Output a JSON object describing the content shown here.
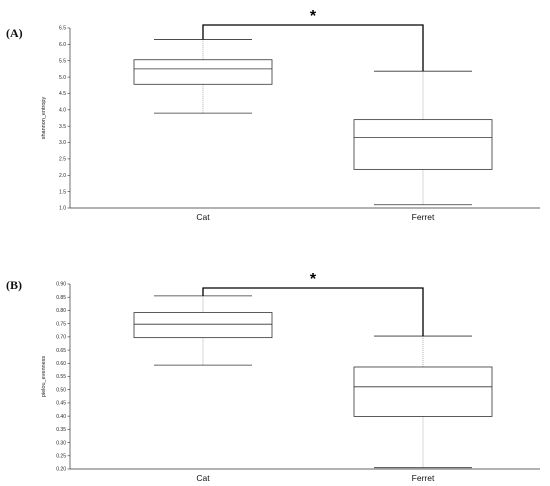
{
  "panels": [
    {
      "label": "(A)"
    },
    {
      "label": "(B)"
    }
  ],
  "chart_data": [
    {
      "type": "box",
      "categories": [
        "Cat",
        "Ferret"
      ],
      "ylabel": "shannon_entropy",
      "ylim": [
        1.0,
        6.5
      ],
      "yticks": [
        "1.0",
        "1.5",
        "2.0",
        "2.5",
        "3.0",
        "3.5",
        "4.0",
        "4.5",
        "5.0",
        "5.5",
        "6.0",
        "6.5"
      ],
      "boxes": [
        {
          "category": "Cat",
          "min": 3.9,
          "q1": 4.78,
          "median": 5.25,
          "q3": 5.53,
          "max": 6.15
        },
        {
          "category": "Ferret",
          "min": 1.1,
          "q1": 2.18,
          "median": 3.15,
          "q3": 3.7,
          "max": 5.18
        }
      ],
      "significance": "*"
    },
    {
      "type": "box",
      "categories": [
        "Cat",
        "Ferret"
      ],
      "ylabel": "pielou_evenness",
      "ylim": [
        0.2,
        0.9
      ],
      "yticks": [
        "0.20",
        "0.25",
        "0.30",
        "0.35",
        "0.40",
        "0.45",
        "0.50",
        "0.55",
        "0.60",
        "0.65",
        "0.70",
        "0.75",
        "0.80",
        "0.85",
        "0.90"
      ],
      "boxes": [
        {
          "category": "Cat",
          "min": 0.593,
          "q1": 0.697,
          "median": 0.748,
          "q3": 0.792,
          "max": 0.855
        },
        {
          "category": "Ferret",
          "min": 0.205,
          "q1": 0.399,
          "median": 0.511,
          "q3": 0.586,
          "max": 0.703
        }
      ],
      "significance": "*"
    }
  ]
}
